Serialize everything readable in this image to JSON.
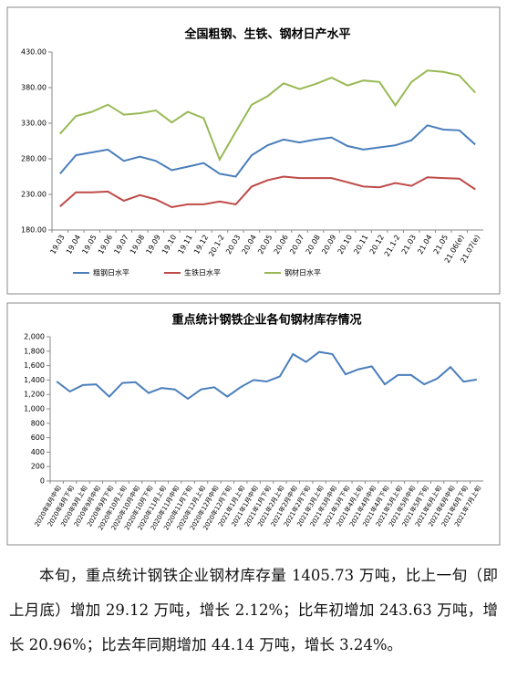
{
  "chart_data": [
    {
      "type": "line",
      "title": "全国粗钢、生铁、钢材日产水平",
      "categories": [
        "19.03",
        "19.04",
        "19.05",
        "19.06",
        "19.07",
        "19.08",
        "19.09",
        "19.10",
        "19.11",
        "19.12",
        "20.1-2",
        "20.03",
        "20.04",
        "20.05",
        "20.06",
        "20.07",
        "20.08",
        "20.09",
        "20.10",
        "20.11",
        "20.12",
        "21.1-2",
        "21.03",
        "21.04",
        "21.05",
        "21.06(e)",
        "21.07(e)"
      ],
      "series": [
        {
          "name": "粗钢日水平",
          "color": "#4a7ebb",
          "values": [
            259,
            285,
            289,
            293,
            277,
            283,
            277,
            264,
            269,
            274,
            259,
            255,
            285,
            299,
            307,
            303,
            307,
            310,
            298,
            293,
            296,
            299,
            306,
            327,
            321,
            320,
            300
          ]
        },
        {
          "name": "生铁日水平",
          "color": "#be4b48",
          "values": [
            213,
            233,
            233,
            234,
            221,
            229,
            223,
            212,
            216,
            216,
            220,
            216,
            241,
            250,
            255,
            253,
            253,
            253,
            247,
            241,
            240,
            246,
            242,
            254,
            253,
            252,
            237
          ]
        },
        {
          "name": "钢材日水平",
          "color": "#98b954",
          "values": [
            315,
            340,
            346,
            356,
            342,
            344,
            348,
            331,
            346,
            337,
            279,
            318,
            356,
            368,
            386,
            378,
            385,
            394,
            383,
            390,
            388,
            355,
            388,
            404,
            402,
            397,
            373
          ]
        }
      ],
      "ylim": [
        180,
        430
      ],
      "yticks": [
        {
          "value": 180,
          "label": "180.00"
        },
        {
          "value": 230,
          "label": "230.00"
        },
        {
          "value": 280,
          "label": "280.00"
        },
        {
          "value": 330,
          "label": "330.00"
        },
        {
          "value": 380,
          "label": "380.00"
        },
        {
          "value": 430,
          "label": "430.00"
        }
      ]
    },
    {
      "type": "line",
      "title": "重点统计钢铁企业各旬钢材库存情况",
      "categories": [
        "2020年8月中旬",
        "2020年8月下旬",
        "2020年9月上旬",
        "2020年9月中旬",
        "2020年9月下旬",
        "2020年10月上旬",
        "2020年10月中旬",
        "2020年10月下旬",
        "2020年11月上旬",
        "2020年11月中旬",
        "2020年11月下旬",
        "2020年12月上旬",
        "2020年12月中旬",
        "2020年12月下旬",
        "2021年1月上旬",
        "2021年1月中旬",
        "2021年1月下旬",
        "2021年2月上旬",
        "2021年2月中旬",
        "2021年2月下旬",
        "2021年3月上旬",
        "2021年3月中旬",
        "2021年3月下旬",
        "2021年4月上旬",
        "2021年4月中旬",
        "2021年4月下旬",
        "2021年5月上旬",
        "2021年5月中旬",
        "2021年5月下旬",
        "2021年6月上旬",
        "2021年6月中旬",
        "2021年6月下旬",
        "2021年7月上旬"
      ],
      "values": [
        1380,
        1240,
        1330,
        1340,
        1170,
        1360,
        1370,
        1220,
        1290,
        1270,
        1140,
        1270,
        1300,
        1170,
        1300,
        1400,
        1380,
        1450,
        1760,
        1650,
        1790,
        1760,
        1480,
        1550,
        1590,
        1340,
        1470,
        1470,
        1340,
        1420,
        1580,
        1376.61,
        1405.73
      ],
      "color": "#4a7ebb",
      "ylim": [
        0,
        2000
      ],
      "yticks": [
        0,
        200,
        400,
        600,
        800,
        {
          "value": 1000,
          "label": "1,000"
        },
        {
          "value": 1200,
          "label": "1,200"
        },
        {
          "value": 1400,
          "label": "1,400"
        },
        {
          "value": 1600,
          "label": "1,600"
        },
        {
          "value": 1800,
          "label": "1,800"
        },
        {
          "value": 2000,
          "label": "2,000"
        }
      ]
    }
  ],
  "paragraph": "本旬，重点统计钢铁企业钢材库存量 1405.73 万吨，比上一旬（即上月底）增加 29.12 万吨，增长 2.12%；比年初增加 243.63 万吨，增长 20.96%；比去年同期增加 44.14 万吨，增长 3.24%。"
}
